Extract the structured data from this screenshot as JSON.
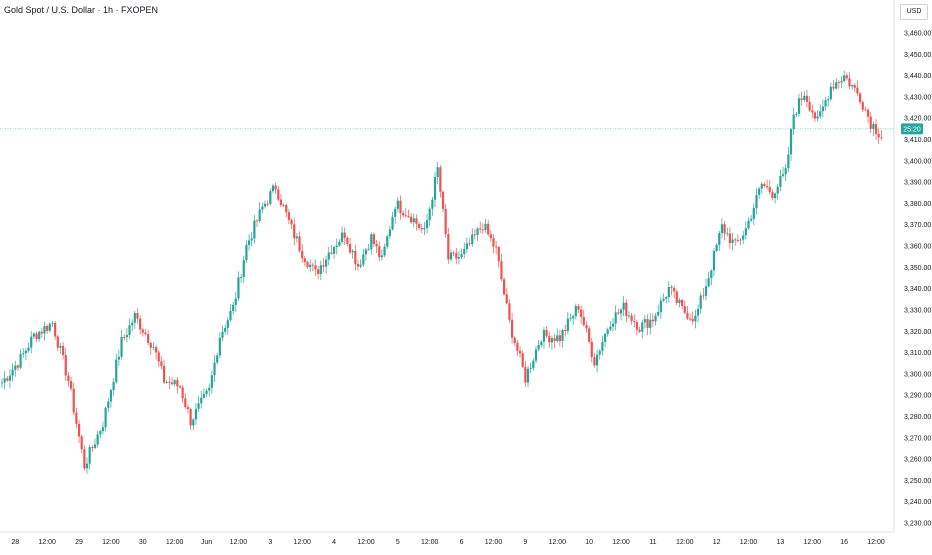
{
  "header": {
    "title": "Gold Spot / U.S. Dollar · 1h · FXOPEN",
    "currency": "USD"
  },
  "chart_data": {
    "type": "candlestick",
    "title": "Gold Spot / U.S. Dollar · 1h · FXOPEN",
    "colors": {
      "up": "#26a69a",
      "down": "#ef5350",
      "price_line": "#26a69a"
    },
    "ylim": [
      3226,
      3466
    ],
    "y_ticks": [
      3230,
      3240,
      3250,
      3260,
      3270,
      3280,
      3290,
      3300,
      3310,
      3320,
      3330,
      3340,
      3350,
      3360,
      3370,
      3380,
      3390,
      3400,
      3410,
      3420,
      3430,
      3440,
      3450,
      3460
    ],
    "y_tick_labels": [
      "3,230.00",
      "3,240.00",
      "3,250.00",
      "3,260.00",
      "3,270.00",
      "3,280.00",
      "3,290.00",
      "3,300.00",
      "3,310.00",
      "3,320.00",
      "3,330.00",
      "3,340.00",
      "3,350.00",
      "3,360.00",
      "3,370.00",
      "3,380.00",
      "3,390.00",
      "3,400.00",
      "3,410.00",
      "3,420.00",
      "3,430.00",
      "3,440.00",
      "3,450.00",
      "3,460.00"
    ],
    "x_ticks": [
      {
        "index": 5,
        "label": "28"
      },
      {
        "index": 17,
        "label": "12:00"
      },
      {
        "index": 29,
        "label": "29"
      },
      {
        "index": 41,
        "label": "12:00"
      },
      {
        "index": 53,
        "label": "30"
      },
      {
        "index": 65,
        "label": "12:00"
      },
      {
        "index": 77,
        "label": "Jun"
      },
      {
        "index": 89,
        "label": "12:00"
      },
      {
        "index": 101,
        "label": "3"
      },
      {
        "index": 113,
        "label": "12:00"
      },
      {
        "index": 125,
        "label": "4"
      },
      {
        "index": 137,
        "label": "12:00"
      },
      {
        "index": 149,
        "label": "5"
      },
      {
        "index": 161,
        "label": "12:00"
      },
      {
        "index": 173,
        "label": "6"
      },
      {
        "index": 185,
        "label": "12:00"
      },
      {
        "index": 197,
        "label": "9"
      },
      {
        "index": 209,
        "label": "12:00"
      },
      {
        "index": 221,
        "label": "10"
      },
      {
        "index": 233,
        "label": "12:00"
      },
      {
        "index": 245,
        "label": "11"
      },
      {
        "index": 257,
        "label": "12:00"
      },
      {
        "index": 269,
        "label": "12"
      },
      {
        "index": 281,
        "label": "12:00"
      },
      {
        "index": 293,
        "label": "13"
      },
      {
        "index": 305,
        "label": "12:00"
      },
      {
        "index": 317,
        "label": "16"
      },
      {
        "index": 329,
        "label": "12:00"
      }
    ],
    "price_marker": {
      "value": 3415,
      "label": "25:20"
    },
    "anchors": [
      [
        0,
        3296
      ],
      [
        7,
        3307
      ],
      [
        12,
        3318
      ],
      [
        19,
        3324
      ],
      [
        25,
        3297
      ],
      [
        31,
        3257
      ],
      [
        38,
        3277
      ],
      [
        45,
        3315
      ],
      [
        50,
        3327
      ],
      [
        57,
        3313
      ],
      [
        61,
        3297
      ],
      [
        67,
        3294
      ],
      [
        71,
        3278
      ],
      [
        78,
        3292
      ],
      [
        82,
        3318
      ],
      [
        87,
        3331
      ],
      [
        92,
        3360
      ],
      [
        98,
        3378
      ],
      [
        103,
        3388
      ],
      [
        109,
        3368
      ],
      [
        113,
        3357
      ],
      [
        118,
        3347
      ],
      [
        124,
        3359
      ],
      [
        129,
        3366
      ],
      [
        134,
        3351
      ],
      [
        139,
        3364
      ],
      [
        143,
        3353
      ],
      [
        148,
        3380
      ],
      [
        154,
        3374
      ],
      [
        159,
        3366
      ],
      [
        164,
        3396
      ],
      [
        168,
        3354
      ],
      [
        173,
        3355
      ],
      [
        181,
        3370
      ],
      [
        186,
        3358
      ],
      [
        191,
        3324
      ],
      [
        197,
        3298
      ],
      [
        203,
        3318
      ],
      [
        210,
        3317
      ],
      [
        217,
        3332
      ],
      [
        223,
        3306
      ],
      [
        229,
        3325
      ],
      [
        234,
        3331
      ],
      [
        240,
        3322
      ],
      [
        245,
        3326
      ],
      [
        251,
        3340
      ],
      [
        256,
        3330
      ],
      [
        261,
        3326
      ],
      [
        266,
        3346
      ],
      [
        271,
        3369
      ],
      [
        276,
        3360
      ],
      [
        280,
        3368
      ],
      [
        286,
        3389
      ],
      [
        290,
        3385
      ],
      [
        295,
        3394
      ],
      [
        298,
        3422
      ],
      [
        302,
        3432
      ],
      [
        307,
        3418
      ],
      [
        312,
        3435
      ],
      [
        317,
        3440
      ],
      [
        323,
        3430
      ],
      [
        327,
        3418
      ],
      [
        331,
        3412
      ]
    ],
    "candle_count": 332
  }
}
